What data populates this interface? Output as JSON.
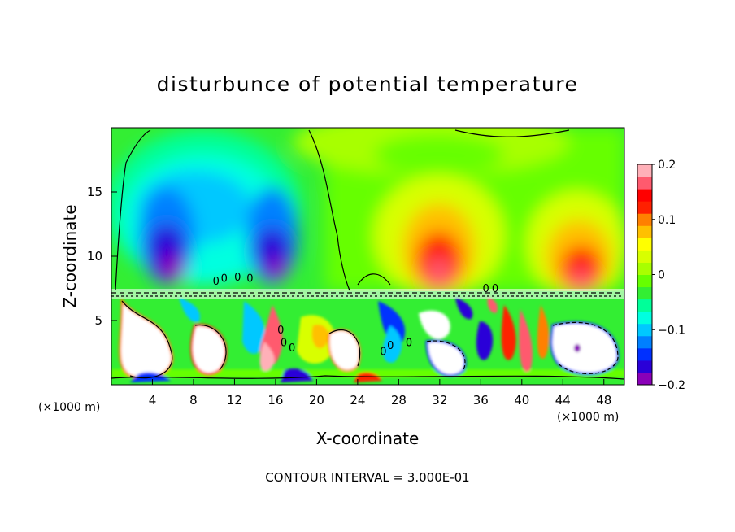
{
  "chart_data": {
    "type": "heatmap",
    "title": "disturbunce of potential temperature",
    "xlabel": "X-coordinate",
    "ylabel": "Z-coordinate",
    "x_unit_left": "(×1000 m)",
    "x_unit_right": "(×1000 m)",
    "xlim": [
      0,
      50
    ],
    "ylim": [
      0,
      20
    ],
    "x_ticks": [
      4,
      8,
      12,
      16,
      20,
      24,
      28,
      32,
      36,
      40,
      44,
      48
    ],
    "y_ticks": [
      5,
      10,
      15
    ],
    "footnote": "CONTOUR INTERVAL = 3.000E-01",
    "colorbar": {
      "range": [
        -0.2,
        0.2
      ],
      "tick_values": [
        0.2,
        0.1,
        0,
        -0.1,
        -0.2
      ],
      "tick_labels": [
        "0.2",
        "0.1",
        "0",
        "−0.1",
        "−0.2"
      ],
      "colors": [
        "#8a00b8",
        "#2a00d8",
        "#0030ff",
        "#0080ff",
        "#00c8ff",
        "#00ffe0",
        "#00ff99",
        "#33ee33",
        "#66ff00",
        "#a8ff00",
        "#d8ff00",
        "#ffff00",
        "#ffc000",
        "#ff8000",
        "#ff2000",
        "#ff0000",
        "#ff5a6e",
        "#ffb0b8"
      ]
    },
    "features": [
      {
        "label": "cold anomaly",
        "x": 7.5,
        "z": 10.5,
        "value": -0.2
      },
      {
        "label": "cold anomaly",
        "x": 16.5,
        "z": 10.5,
        "value": -0.2
      },
      {
        "label": "warm anomaly",
        "x": 32.5,
        "z": 10.5,
        "value": 0.2
      },
      {
        "label": "warm anomaly",
        "x": 45.5,
        "z": 10.5,
        "value": 0.2
      },
      {
        "label": "turbulent layer",
        "x": 25,
        "z": 3.5,
        "value": 0
      }
    ],
    "contour_labels": [
      {
        "text": "0",
        "x": 10.2,
        "z": 7.8
      },
      {
        "text": "0",
        "x": 11.0,
        "z": 8.0
      },
      {
        "text": "0",
        "x": 12.3,
        "z": 8.1
      },
      {
        "text": "0",
        "x": 13.5,
        "z": 8.0
      },
      {
        "text": "0",
        "x": 16.5,
        "z": 4.0
      },
      {
        "text": "0",
        "x": 16.8,
        "z": 3.0
      },
      {
        "text": "0",
        "x": 17.6,
        "z": 2.6
      },
      {
        "text": "0",
        "x": 26.5,
        "z": 2.3
      },
      {
        "text": "0",
        "x": 27.2,
        "z": 2.8
      },
      {
        "text": "0",
        "x": 29.0,
        "z": 3.0
      },
      {
        "text": "0",
        "x": 36.5,
        "z": 7.2
      },
      {
        "text": "0",
        "x": 37.4,
        "z": 7.2
      }
    ]
  }
}
